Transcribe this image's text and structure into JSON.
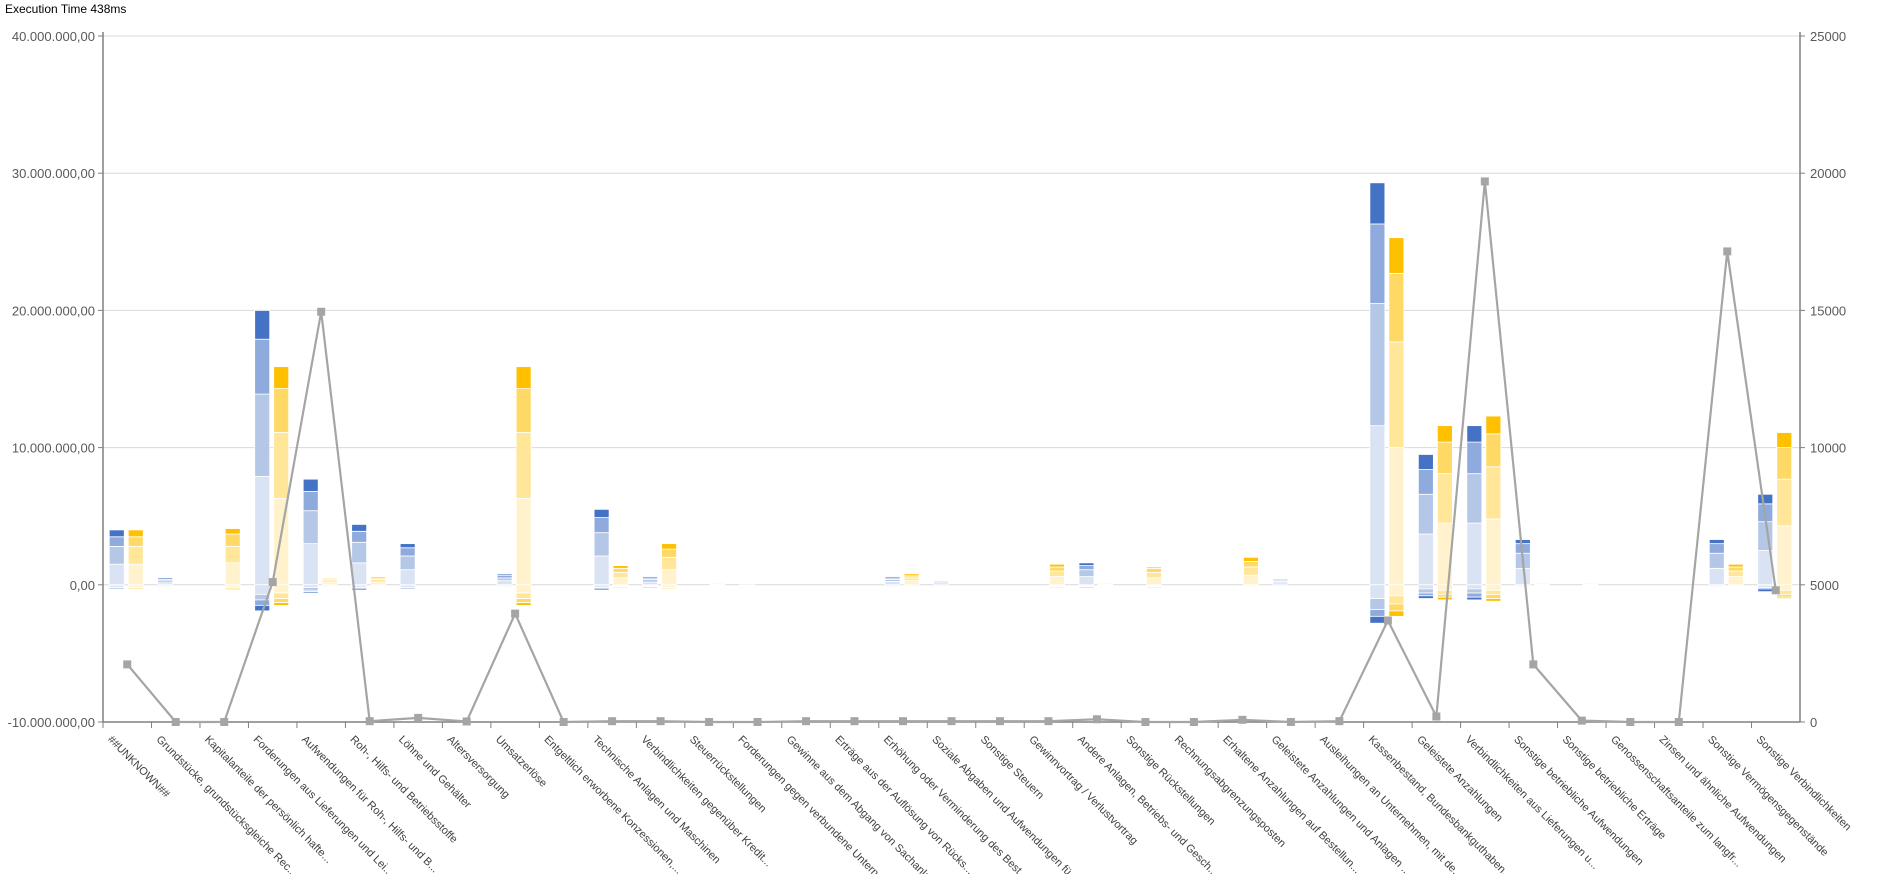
{
  "header": {
    "execution_time": "Execution Time 438ms"
  },
  "chart_data": {
    "type": "bar",
    "subtype": "stacked-bar-pairs-with-line-secondary-axis",
    "title": "",
    "xlabel": "",
    "ylabel": "",
    "ylim": [
      -10000000,
      40000000
    ],
    "y2lim": [
      0,
      25000
    ],
    "grid": true,
    "legend": "none",
    "y_ticks": [
      "-10.000.000,00",
      "0,00",
      "10.000.000,00",
      "20.000.000,00",
      "30.000.000,00",
      "40.000.000,00"
    ],
    "y_tick_values": [
      -10000000,
      0,
      10000000,
      20000000,
      30000000,
      40000000
    ],
    "y2_ticks": [
      "0",
      "5000",
      "10000",
      "15000",
      "20000",
      "25000"
    ],
    "y2_tick_values": [
      0,
      5000,
      10000,
      15000,
      20000,
      25000
    ],
    "colors": {
      "blue": [
        "#dae3f3",
        "#b4c7e7",
        "#8faadc",
        "#4472c4"
      ],
      "yellow": [
        "#fff2cc",
        "#ffe699",
        "#ffd966",
        "#ffc000"
      ],
      "line": "#a5a5a5",
      "grid": "#d9d9d9",
      "axis": "#808080"
    },
    "categories": [
      "##UNKNOWN##",
      "Grundstücke, grundstücksgleiche Rec...",
      "Kapitalanteile der persönlich hafte...",
      "Forderungen aus Lieferungen und Lei...",
      "Aufwendungen für Roh-, Hilfs- und B...",
      "Roh-, Hilfs- und Betriebsstoffe",
      "Löhne und Gehälter",
      "Altersversorgung",
      "Umsatzerlöse",
      "Entgeltlich erworbene Konzessionen,...",
      "Technische Anlagen und Maschinen",
      "Verbindlichkeiten gegenüber Kredit...",
      "Steuerrückstellungen",
      "Forderungen gegen verbundene Untern...",
      "Gewinne aus dem Abgang von Sachanla...",
      "Erträge aus der Auflösung von Rücks...",
      "Erhöhung oder Verminderung des Best...",
      "Soziale Abgaben und Aufwendungen fü...",
      "Sonstige Steuern",
      "Gewinnvortrag / Verlustvortrag",
      "Andere Anlagen, Betriebs- und Gesch...",
      "Sonstige Rückstellungen",
      "Rechnungsabgrenzungsposten",
      "Erhaltene Anzahlungen auf Bestellun...",
      "Geleistete Anzahlungen und Anlagen ...",
      "Ausleihungen an Unternehmen, mit de...",
      "Kassenbestand, Bundesbankguthaben, ...",
      "Geleistete Anzahlungen",
      "Verbindlichkeiten aus Lieferungen u...",
      "Sonstige betriebliche Aufwendungen",
      "Sonstige betriebliche Erträge",
      "Genossenschaftsanteile  zum langfr...",
      "Zinsen und ähnliche Aufwendungen",
      "Sonstige Vermögensgegenstände",
      "Sonstige Verbindlichkeiten"
    ],
    "units_bars": "millions",
    "blue_pos": [
      [
        1.5,
        1.3,
        0.7,
        0.5
      ],
      [
        0.15,
        0.15,
        0.1,
        0.1
      ],
      [
        0,
        0,
        0,
        0
      ],
      [
        7.9,
        6.0,
        4.0,
        2.1
      ],
      [
        3.0,
        2.4,
        1.4,
        0.9
      ],
      [
        1.6,
        1.5,
        0.8,
        0.5
      ],
      [
        1.1,
        1.0,
        0.6,
        0.3
      ],
      [
        0,
        0,
        0,
        0
      ],
      [
        0.3,
        0.2,
        0.2,
        0.1
      ],
      [
        0,
        0,
        0,
        0
      ],
      [
        2.1,
        1.7,
        1.1,
        0.6
      ],
      [
        0.2,
        0.2,
        0.1,
        0.1
      ],
      [
        0,
        0,
        0,
        0
      ],
      [
        0.03,
        0.02,
        0,
        0
      ],
      [
        0,
        0,
        0,
        0
      ],
      [
        0,
        0,
        0,
        0
      ],
      [
        0.25,
        0.15,
        0.1,
        0.1
      ],
      [
        0.15,
        0.1,
        0.05,
        0.0
      ],
      [
        0,
        0,
        0,
        0
      ],
      [
        0,
        0,
        0,
        0
      ],
      [
        0.6,
        0.5,
        0.3,
        0.2
      ],
      [
        0,
        0,
        0,
        0
      ],
      [
        0,
        0,
        0,
        0
      ],
      [
        0,
        0,
        0,
        0
      ],
      [
        0.15,
        0.1,
        0.1,
        0.05
      ],
      [
        0,
        0,
        0,
        0
      ],
      [
        11.6,
        8.9,
        5.8,
        3.0
      ],
      [
        3.7,
        2.9,
        1.8,
        1.1
      ],
      [
        4.5,
        3.6,
        2.3,
        1.2
      ],
      [
        1.2,
        1.1,
        0.7,
        0.3
      ],
      [
        0,
        0,
        0,
        0
      ],
      [
        0,
        0,
        0,
        0
      ],
      [
        0,
        0,
        0,
        0
      ],
      [
        1.2,
        1.1,
        0.7,
        0.3
      ],
      [
        2.5,
        2.1,
        1.3,
        0.7
      ]
    ],
    "blue_neg": [
      [
        0.1,
        0.1,
        0.1,
        0
      ],
      [
        0.05,
        0.05,
        0,
        0
      ],
      [
        0,
        0,
        0,
        0
      ],
      [
        0.7,
        0.4,
        0.4,
        0.4
      ],
      [
        0.2,
        0.2,
        0.1,
        0.1
      ],
      [
        0.1,
        0.1,
        0.1,
        0.1
      ],
      [
        0.1,
        0.1,
        0.1,
        0
      ],
      [
        0,
        0,
        0,
        0
      ],
      [
        0.05,
        0.05,
        0,
        0
      ],
      [
        0,
        0,
        0,
        0
      ],
      [
        0.1,
        0.1,
        0.1,
        0.1
      ],
      [
        0.05,
        0.05,
        0.05,
        0.05
      ],
      [
        0,
        0,
        0,
        0
      ],
      [
        0,
        0,
        0,
        0
      ],
      [
        0,
        0,
        0,
        0
      ],
      [
        0,
        0,
        0,
        0
      ],
      [
        0.05,
        0.05,
        0,
        0
      ],
      [
        0,
        0,
        0,
        0
      ],
      [
        0,
        0,
        0,
        0
      ],
      [
        0,
        0,
        0,
        0
      ],
      [
        0.05,
        0.05,
        0.05,
        0.05
      ],
      [
        0,
        0,
        0,
        0
      ],
      [
        0,
        0,
        0,
        0
      ],
      [
        0,
        0,
        0,
        0
      ],
      [
        0,
        0,
        0,
        0
      ],
      [
        0,
        0,
        0,
        0
      ],
      [
        1.0,
        0.8,
        0.5,
        0.5
      ],
      [
        0.3,
        0.3,
        0.2,
        0.2
      ],
      [
        0.3,
        0.3,
        0.3,
        0.2
      ],
      [
        0.05,
        0.05,
        0,
        0
      ],
      [
        0,
        0,
        0,
        0
      ],
      [
        0,
        0,
        0,
        0
      ],
      [
        0,
        0,
        0,
        0
      ],
      [
        0.05,
        0.05,
        0,
        0
      ],
      [
        0.1,
        0.1,
        0.1,
        0.2
      ]
    ],
    "yellow_pos": [
      [
        1.5,
        1.3,
        0.7,
        0.5
      ],
      [
        0,
        0,
        0,
        0
      ],
      [
        1.6,
        1.2,
        0.9,
        0.4
      ],
      [
        6.3,
        4.8,
        3.2,
        1.6
      ],
      [
        0.2,
        0.15,
        0.1,
        0.05
      ],
      [
        0.2,
        0.2,
        0.1,
        0.1
      ],
      [
        0,
        0,
        0,
        0
      ],
      [
        0,
        0,
        0,
        0
      ],
      [
        6.3,
        4.8,
        3.2,
        1.6
      ],
      [
        0,
        0,
        0,
        0
      ],
      [
        0.5,
        0.4,
        0.3,
        0.2
      ],
      [
        1.1,
        0.9,
        0.6,
        0.4
      ],
      [
        0.05,
        0.05,
        0,
        0
      ],
      [
        0,
        0,
        0,
        0
      ],
      [
        0,
        0,
        0,
        0
      ],
      [
        0,
        0,
        0,
        0
      ],
      [
        0.3,
        0.2,
        0.15,
        0.15
      ],
      [
        0,
        0,
        0,
        0
      ],
      [
        0,
        0,
        0,
        0
      ],
      [
        0.6,
        0.4,
        0.3,
        0.2
      ],
      [
        0.05,
        0.05,
        0,
        0
      ],
      [
        0.5,
        0.4,
        0.3,
        0.1
      ],
      [
        0,
        0,
        0,
        0
      ],
      [
        0.7,
        0.6,
        0.4,
        0.3
      ],
      [
        0,
        0,
        0,
        0
      ],
      [
        0,
        0,
        0,
        0
      ],
      [
        10.0,
        7.7,
        5.0,
        2.6
      ],
      [
        4.5,
        3.6,
        2.3,
        1.2
      ],
      [
        4.8,
        3.8,
        2.4,
        1.3
      ],
      [
        0.05,
        0.05,
        0,
        0
      ],
      [
        0.05,
        0.05,
        0,
        0
      ],
      [
        0,
        0,
        0,
        0
      ],
      [
        0,
        0,
        0,
        0
      ],
      [
        0.6,
        0.4,
        0.3,
        0.2
      ],
      [
        4.3,
        3.4,
        2.3,
        1.1
      ]
    ],
    "yellow_neg": [
      [
        0.1,
        0.1,
        0.1,
        0
      ],
      [
        0,
        0,
        0,
        0
      ],
      [
        0.1,
        0.1,
        0.1,
        0.05
      ],
      [
        0.6,
        0.4,
        0.3,
        0.2
      ],
      [
        0,
        0,
        0,
        0
      ],
      [
        0,
        0,
        0,
        0
      ],
      [
        0,
        0,
        0,
        0
      ],
      [
        0,
        0,
        0,
        0
      ],
      [
        0.6,
        0.4,
        0.3,
        0.2
      ],
      [
        0,
        0,
        0,
        0
      ],
      [
        0.05,
        0.05,
        0.05,
        0.05
      ],
      [
        0.1,
        0.1,
        0.05,
        0.05
      ],
      [
        0,
        0,
        0,
        0
      ],
      [
        0,
        0,
        0,
        0
      ],
      [
        0,
        0,
        0,
        0
      ],
      [
        0,
        0,
        0,
        0
      ],
      [
        0,
        0,
        0,
        0
      ],
      [
        0,
        0,
        0,
        0
      ],
      [
        0,
        0,
        0,
        0
      ],
      [
        0.05,
        0.05,
        0.05,
        0.05
      ],
      [
        0,
        0,
        0,
        0
      ],
      [
        0.05,
        0.05,
        0.05,
        0.05
      ],
      [
        0,
        0,
        0,
        0
      ],
      [
        0.05,
        0.05,
        0,
        0
      ],
      [
        0,
        0,
        0,
        0
      ],
      [
        0,
        0,
        0,
        0
      ],
      [
        0.8,
        0.6,
        0.5,
        0.4
      ],
      [
        0.4,
        0.3,
        0.2,
        0.2
      ],
      [
        0.4,
        0.3,
        0.3,
        0.2
      ],
      [
        0,
        0,
        0,
        0
      ],
      [
        0,
        0,
        0,
        0
      ],
      [
        0,
        0,
        0,
        0
      ],
      [
        0,
        0,
        0,
        0
      ],
      [
        0,
        0,
        0,
        0
      ],
      [
        0.4,
        0.3,
        0.2,
        0.1
      ]
    ],
    "line_values": [
      2100,
      0,
      0,
      5100,
      14950,
      30,
      150,
      20,
      3950,
      0,
      30,
      30,
      0,
      0,
      30,
      30,
      30,
      30,
      30,
      30,
      100,
      0,
      0,
      80,
      0,
      30,
      3700,
      200,
      19700,
      2100,
      50,
      0,
      0,
      17150,
      4800
    ]
  }
}
